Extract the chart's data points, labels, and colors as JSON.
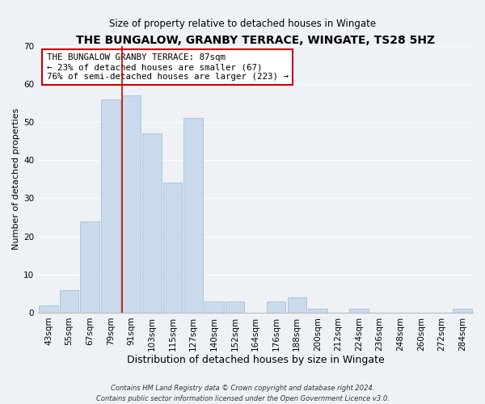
{
  "title": "THE BUNGALOW, GRANBY TERRACE, WINGATE, TS28 5HZ",
  "subtitle": "Size of property relative to detached houses in Wingate",
  "xlabel": "Distribution of detached houses by size in Wingate",
  "ylabel": "Number of detached properties",
  "bar_color": "#c8daeb",
  "bar_edge_color": "#a8c0d6",
  "bin_labels": [
    "43sqm",
    "55sqm",
    "67sqm",
    "79sqm",
    "91sqm",
    "103sqm",
    "115sqm",
    "127sqm",
    "140sqm",
    "152sqm",
    "164sqm",
    "176sqm",
    "188sqm",
    "200sqm",
    "212sqm",
    "224sqm",
    "236sqm",
    "248sqm",
    "260sqm",
    "272sqm",
    "284sqm"
  ],
  "bar_values": [
    2,
    6,
    24,
    56,
    57,
    47,
    34,
    51,
    3,
    3,
    0,
    3,
    4,
    1,
    0,
    1,
    0,
    0,
    0,
    0,
    1
  ],
  "ylim": [
    0,
    70
  ],
  "yticks": [
    0,
    10,
    20,
    30,
    40,
    50,
    60,
    70
  ],
  "property_line_bin_index": 4,
  "annotation_text": "THE BUNGALOW GRANBY TERRACE: 87sqm\n← 23% of detached houses are smaller (67)\n76% of semi-detached houses are larger (223) →",
  "annotation_box_facecolor": "#ffffff",
  "annotation_box_edgecolor": "#cc0000",
  "footer_line1": "Contains HM Land Registry data © Crown copyright and database right 2024.",
  "footer_line2": "Contains public sector information licensed under the Open Government Licence v3.0.",
  "bg_color": "#eef2f7",
  "plot_bg_color": "#eef2f7",
  "grid_color": "#ffffff",
  "title_fontsize": 10,
  "subtitle_fontsize": 8.5,
  "xlabel_fontsize": 9,
  "ylabel_fontsize": 8,
  "tick_fontsize": 7.5,
  "annotation_fontsize": 7.8,
  "footer_fontsize": 6
}
